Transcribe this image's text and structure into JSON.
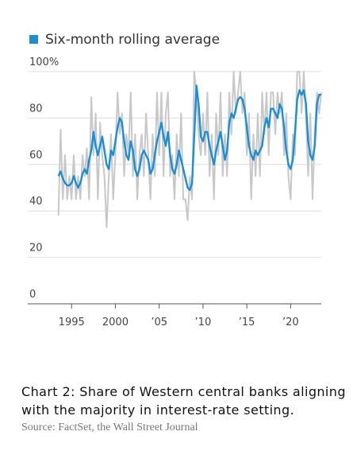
{
  "chart_data": {
    "type": "line",
    "title": "Chart 2: Share of Western central banks aligning with the majority in interest-rate setting.",
    "source": "Source: FactSet, the Wall Street Journal",
    "x": [
      1993.5,
      1993.75,
      1994,
      1994.25,
      1994.5,
      1994.75,
      1995,
      1995.25,
      1995.5,
      1995.75,
      1996,
      1996.25,
      1996.5,
      1996.75,
      1997,
      1997.25,
      1997.5,
      1997.75,
      1998,
      1998.25,
      1998.5,
      1998.75,
      1999,
      1999.25,
      1999.5,
      1999.75,
      2000,
      2000.25,
      2000.5,
      2000.75,
      2001,
      2001.25,
      2001.5,
      2001.75,
      2002,
      2002.25,
      2002.5,
      2002.75,
      2003,
      2003.25,
      2003.5,
      2003.75,
      2004,
      2004.25,
      2004.5,
      2004.75,
      2005,
      2005.25,
      2005.5,
      2005.75,
      2006,
      2006.25,
      2006.5,
      2006.75,
      2007,
      2007.25,
      2007.5,
      2007.75,
      2008,
      2008.25,
      2008.5,
      2008.75,
      2009,
      2009.25,
      2009.5,
      2009.75,
      2010,
      2010.25,
      2010.5,
      2010.75,
      2011,
      2011.25,
      2011.5,
      2011.75,
      2012,
      2012.25,
      2012.5,
      2012.75,
      2013,
      2013.25,
      2013.5,
      2013.75,
      2014,
      2014.25,
      2014.5,
      2014.75,
      2015,
      2015.25,
      2015.5,
      2015.75,
      2016,
      2016.25,
      2016.5,
      2016.75,
      2017,
      2017.25,
      2017.5,
      2017.75,
      2018,
      2018.25,
      2018.5,
      2018.75,
      2019,
      2019.25,
      2019.5,
      2019.75,
      2020,
      2020.25,
      2020.5,
      2020.75,
      2021,
      2021.25,
      2021.5,
      2021.75,
      2022,
      2022.25,
      2022.5,
      2022.75,
      2023,
      2023.25,
      2023.5
    ],
    "series": [
      {
        "color": "#c8c8c8",
        "values": [
          38,
          75,
          45,
          64,
          45,
          55,
          45,
          64,
          45,
          55,
          45,
          64,
          55,
          67,
          45,
          89,
          64,
          82,
          45,
          78,
          64,
          55,
          33,
          55,
          73,
          45,
          64,
          91,
          73,
          82,
          55,
          73,
          64,
          91,
          55,
          73,
          45,
          64,
          73,
          55,
          82,
          64,
          45,
          73,
          55,
          91,
          64,
          91,
          55,
          82,
          91,
          55,
          64,
          45,
          73,
          55,
          82,
          45,
          45,
          36,
          55,
          45,
          100,
          91,
          73,
          64,
          82,
          64,
          91,
          55,
          73,
          45,
          82,
          64,
          91,
          55,
          73,
          55,
          91,
          73,
          100,
          82,
          91,
          100,
          82,
          91,
          64,
          82,
          45,
          73,
          55,
          82,
          55,
          91,
          73,
          91,
          64,
          91,
          91,
          73,
          91,
          82,
          91,
          64,
          82,
          55,
          45,
          73,
          64,
          100,
          100,
          82,
          100,
          82,
          55,
          82,
          45,
          73,
          91,
          82,
          91
        ]
      },
      {
        "name": "Six-month rolling average",
        "color": "#1a8fd6",
        "values": [
          55,
          57,
          54,
          52,
          51,
          51,
          52,
          55,
          52,
          50,
          52,
          56,
          58,
          56,
          62,
          66,
          74,
          68,
          64,
          68,
          72,
          66,
          60,
          58,
          66,
          64,
          70,
          76,
          80,
          78,
          70,
          64,
          62,
          70,
          66,
          58,
          55,
          58,
          64,
          66,
          64,
          62,
          56,
          58,
          64,
          70,
          74,
          78,
          72,
          68,
          74,
          64,
          58,
          56,
          60,
          66,
          62,
          58,
          54,
          50,
          49,
          52,
          72,
          94,
          86,
          72,
          70,
          74,
          74,
          68,
          64,
          60,
          66,
          70,
          74,
          68,
          62,
          66,
          78,
          82,
          80,
          84,
          88,
          89,
          88,
          84,
          76,
          68,
          64,
          62,
          66,
          64,
          66,
          68,
          76,
          80,
          76,
          84,
          84,
          82,
          80,
          86,
          84,
          76,
          66,
          60,
          58,
          62,
          74,
          88,
          92,
          90,
          92,
          86,
          70,
          64,
          62,
          68,
          86,
          90,
          90
        ]
      }
    ],
    "xlim": [
      1990,
      2023.5
    ],
    "xticks": [
      1995,
      2000,
      {
        "value": 2005,
        "label": "’05"
      },
      {
        "value": 2010,
        "label": "’10"
      },
      {
        "value": 2015,
        "label": "’15"
      },
      {
        "value": 2020,
        "label": "’20"
      }
    ],
    "ylim": [
      0,
      100
    ],
    "yticks": [
      0,
      20,
      40,
      60,
      80,
      {
        "value": 100,
        "label": "100%"
      }
    ],
    "grid": true
  }
}
